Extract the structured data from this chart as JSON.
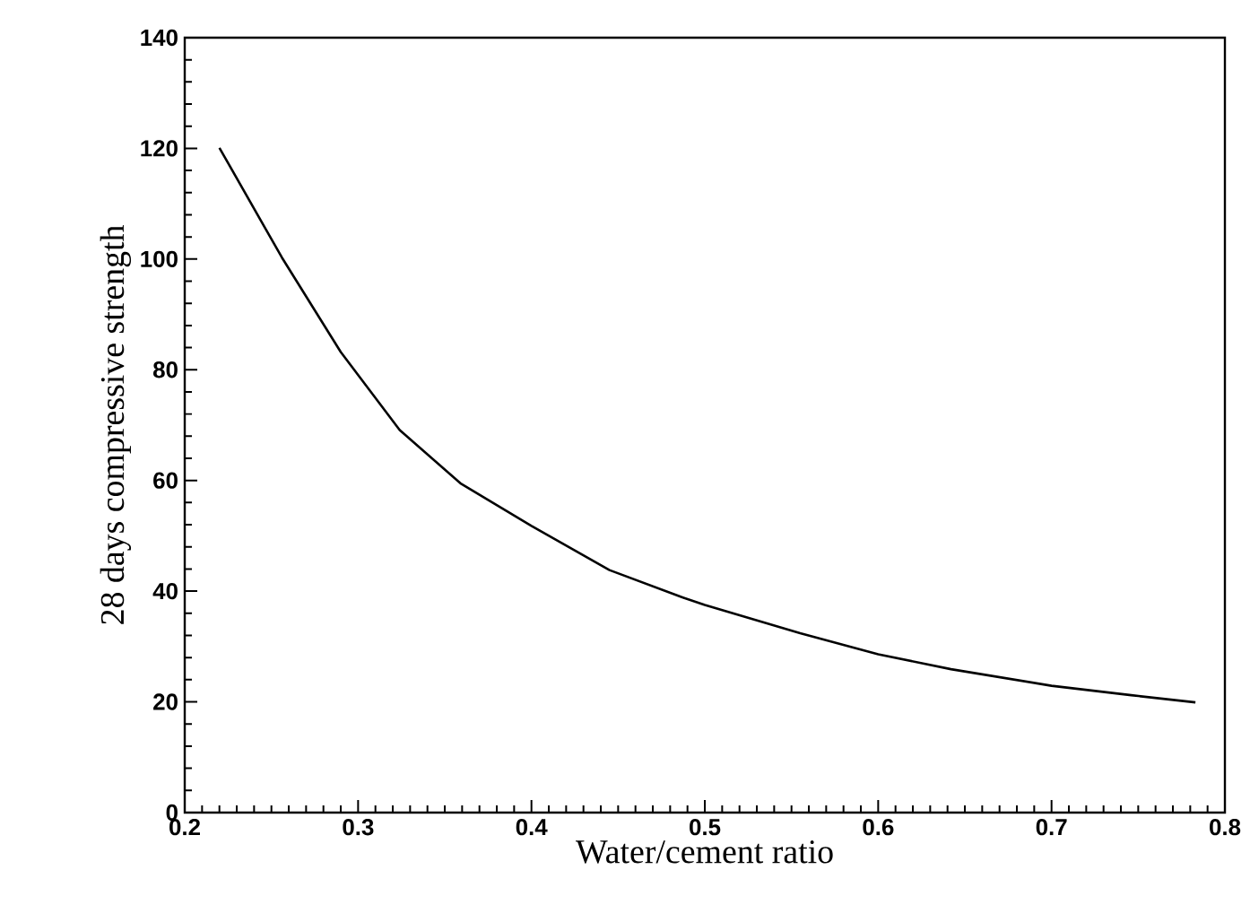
{
  "chart_data": {
    "type": "line",
    "xlabel": "Water/cement ratio",
    "ylabel": "28 days compressive strength",
    "xlim": [
      0.2,
      0.8
    ],
    "ylim": [
      0,
      140
    ],
    "xticks": [
      0.2,
      0.3,
      0.4,
      0.5,
      0.6,
      0.7,
      0.8
    ],
    "yticks": [
      0,
      20,
      40,
      60,
      80,
      100,
      120,
      140
    ],
    "grid": false,
    "marker": "none",
    "line_style": "solid",
    "series": [
      {
        "color": "#000000",
        "x": [
          0.22,
          0.256,
          0.29,
          0.324,
          0.359,
          0.4,
          0.445,
          0.486,
          0.5,
          0.555,
          0.6,
          0.642,
          0.7,
          0.746,
          0.783
        ],
        "values": [
          120.1,
          100.3,
          83.2,
          69.1,
          59.5,
          51.8,
          43.8,
          39.0,
          37.5,
          32.4,
          28.6,
          25.9,
          22.9,
          21.2,
          19.9
        ]
      }
    ]
  }
}
